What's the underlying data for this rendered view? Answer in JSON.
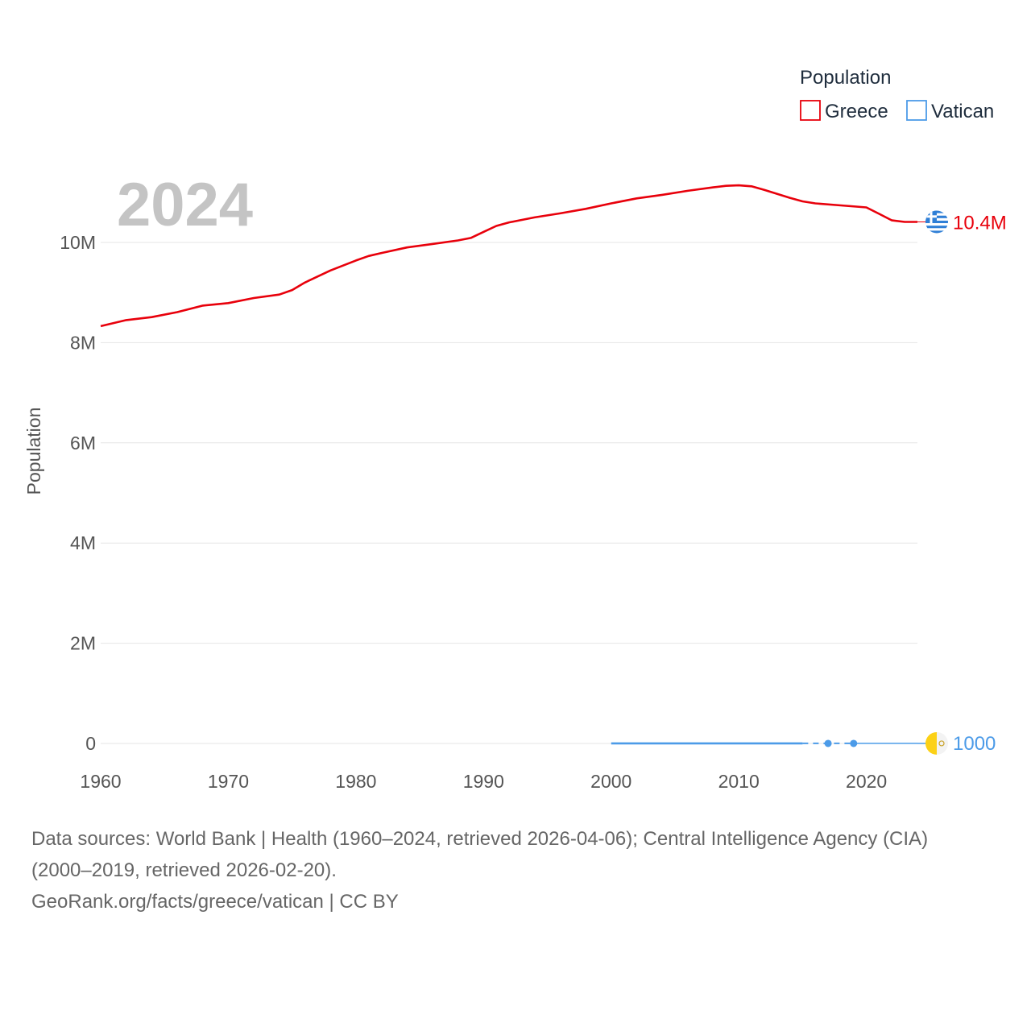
{
  "chart_data": {
    "type": "line",
    "title": "",
    "watermark_year": "2024",
    "xlabel": "",
    "ylabel": "Population",
    "xlim": [
      1960,
      2025
    ],
    "ylim": [
      0,
      11500000
    ],
    "x_ticks": [
      1960,
      1970,
      1980,
      1990,
      2000,
      2010,
      2020
    ],
    "y_ticks": [
      {
        "value": 0,
        "label": "0"
      },
      {
        "value": 2000000,
        "label": "2M"
      },
      {
        "value": 4000000,
        "label": "4M"
      },
      {
        "value": 6000000,
        "label": "6M"
      },
      {
        "value": 8000000,
        "label": "8M"
      },
      {
        "value": 10000000,
        "label": "10M"
      }
    ],
    "grid": true,
    "legend": {
      "title": "Population",
      "position": "top-right"
    },
    "series": [
      {
        "name": "Greece",
        "color": "#e8000b",
        "end_label": "10.4M",
        "flag": "greece-flag",
        "x": [
          1960,
          1962,
          1964,
          1966,
          1968,
          1970,
          1972,
          1974,
          1975,
          1976,
          1978,
          1980,
          1981,
          1982,
          1984,
          1986,
          1988,
          1989,
          1990,
          1991,
          1992,
          1994,
          1996,
          1998,
          2000,
          2002,
          2004,
          2006,
          2008,
          2009,
          2010,
          2011,
          2012,
          2014,
          2015,
          2016,
          2018,
          2020,
          2021,
          2022,
          2023,
          2024
        ],
        "values": [
          8330000,
          8450000,
          8510000,
          8610000,
          8740000,
          8790000,
          8890000,
          8960000,
          9050000,
          9200000,
          9440000,
          9640000,
          9730000,
          9790000,
          9900000,
          9970000,
          10040000,
          10090000,
          10210000,
          10330000,
          10400000,
          10500000,
          10580000,
          10670000,
          10780000,
          10880000,
          10950000,
          11030000,
          11100000,
          11130000,
          11140000,
          11120000,
          11050000,
          10890000,
          10820000,
          10780000,
          10740000,
          10700000,
          10570000,
          10440000,
          10410000,
          10410000
        ]
      },
      {
        "name": "Vatican",
        "color": "#4c9be8",
        "end_label": "1000",
        "flag": "vatican-flag",
        "x": [
          2000,
          2005,
          2010,
          2015,
          2017,
          2019,
          2024
        ],
        "values": [
          890,
          900,
          830,
          840,
          1000,
          1000,
          1000
        ],
        "dashed_segment": [
          2015,
          2019
        ],
        "markers": [
          2017,
          2019
        ]
      }
    ]
  },
  "footer": {
    "source_line1": "Data sources: World Bank | Health (1960–2024, retrieved 2026-04-06); Central Intelligence Agency (CIA)",
    "source_line2": "(2000–2019, retrieved 2026-02-20).",
    "credit": "GeoRank.org/facts/greece/vatican | CC BY"
  }
}
